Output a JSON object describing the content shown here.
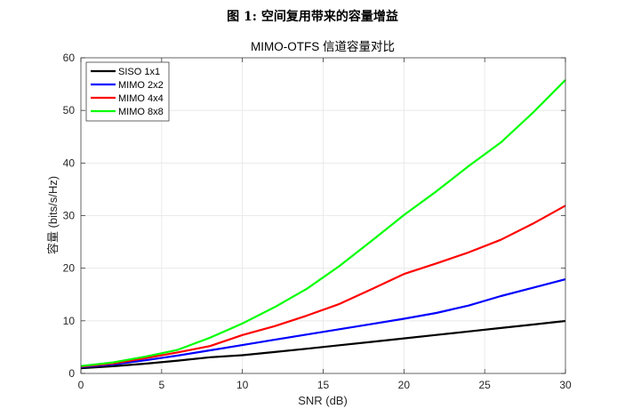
{
  "figure": {
    "caption": "图 1: 空间复用带来的容量增益"
  },
  "chart_data": {
    "type": "line",
    "title": "MIMO-OTFS 信道容量对比",
    "xlabel": "SNR (dB)",
    "ylabel": "容量 (bits/s/Hz)",
    "xlim": [
      0,
      30
    ],
    "ylim": [
      0,
      60
    ],
    "xticks": [
      0,
      5,
      10,
      15,
      20,
      25,
      30
    ],
    "yticks": [
      0,
      10,
      20,
      30,
      40,
      50,
      60
    ],
    "grid": true,
    "legend_position": "upper left",
    "x": [
      0,
      2,
      4,
      6,
      8,
      10,
      12,
      14,
      16,
      18,
      20,
      22,
      24,
      26,
      28,
      30
    ],
    "series": [
      {
        "name": "SISO 1x1",
        "color": "#000000",
        "values": [
          1.0,
          1.37,
          1.86,
          2.44,
          3.07,
          3.46,
          4.07,
          4.7,
          5.35,
          6.0,
          6.66,
          7.32,
          7.98,
          8.64,
          9.3,
          9.97
        ]
      },
      {
        "name": "MIMO 2x2",
        "color": "#0000ff",
        "values": [
          1.2,
          1.7,
          2.5,
          3.4,
          4.4,
          5.4,
          6.4,
          7.4,
          8.4,
          9.4,
          10.4,
          11.5,
          12.9,
          14.7,
          16.3,
          17.9
        ]
      },
      {
        "name": "MIMO 4x4",
        "color": "#ff0000",
        "values": [
          1.3,
          1.9,
          2.9,
          4.0,
          5.2,
          7.3,
          9.0,
          11.0,
          13.2,
          16.0,
          18.9,
          20.9,
          23.0,
          25.4,
          28.5,
          31.9
        ]
      },
      {
        "name": "MIMO 8x8",
        "color": "#00ff00",
        "values": [
          1.4,
          2.1,
          3.2,
          4.5,
          6.8,
          9.5,
          12.6,
          16.1,
          20.4,
          25.2,
          30.1,
          34.6,
          39.4,
          43.9,
          49.6,
          55.8
        ]
      }
    ]
  }
}
